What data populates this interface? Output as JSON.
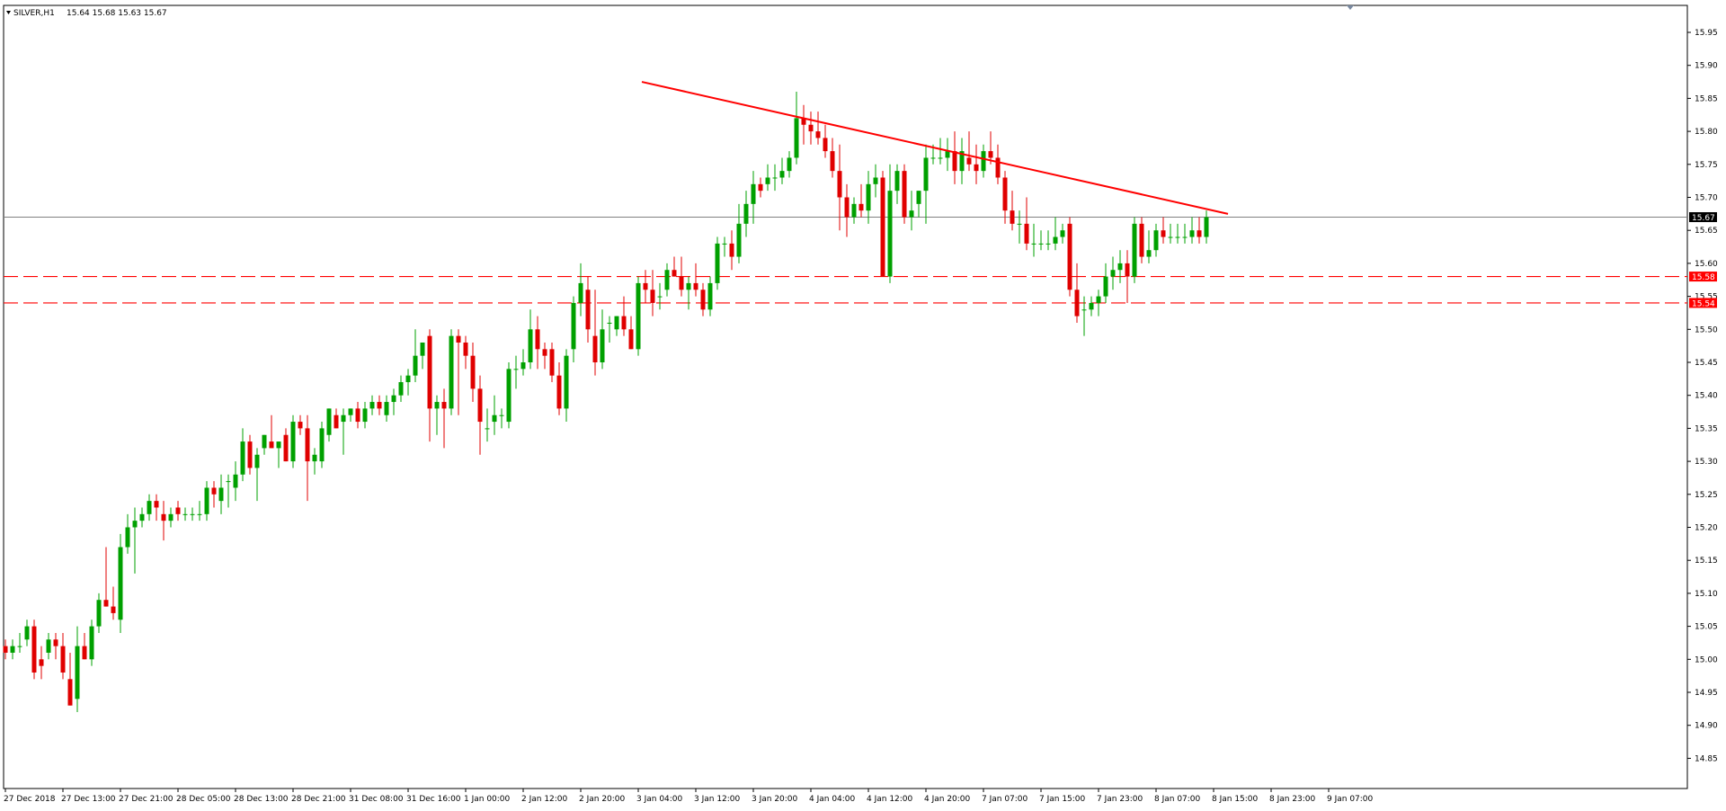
{
  "header": {
    "symbol": "SILVER,H1",
    "ohlc": "15.64 15.68 15.63 15.67"
  },
  "colors": {
    "bull": "#00a000",
    "bear": "#e00000",
    "bull_wick": "#00a000",
    "bear_wick": "#e00000",
    "trendline": "#ff0000",
    "level": "#ff0000",
    "current_line": "#808080",
    "axis": "#000000"
  },
  "chart_data": {
    "type": "candlestick",
    "ylim": [
      14.8,
      15.98
    ],
    "y_ticks": [
      "15.95",
      "15.90",
      "15.85",
      "15.80",
      "15.75",
      "15.70",
      "15.65",
      "15.60",
      "15.55",
      "15.50",
      "15.45",
      "15.40",
      "15.35",
      "15.30",
      "15.25",
      "15.20",
      "15.15",
      "15.10",
      "15.05",
      "15.00",
      "14.95",
      "14.90",
      "14.85"
    ],
    "x_ticks": [
      "27 Dec 2018",
      "27 Dec 13:00",
      "27 Dec 21:00",
      "28 Dec 05:00",
      "28 Dec 13:00",
      "28 Dec 21:00",
      "31 Dec 08:00",
      "31 Dec 16:00",
      "1 Jan 00:00",
      "2 Jan 12:00",
      "2 Jan 20:00",
      "3 Jan 04:00",
      "3 Jan 12:00",
      "3 Jan 20:00",
      "4 Jan 04:00",
      "4 Jan 12:00",
      "4 Jan 20:00",
      "7 Jan 07:00",
      "7 Jan 15:00",
      "7 Jan 23:00",
      "8 Jan 07:00",
      "8 Jan 15:00",
      "8 Jan 23:00",
      "9 Jan 07:00"
    ],
    "x_tick_spacing_bars": 8,
    "current_price": 15.67,
    "current_price_label": "15.67",
    "levels": [
      {
        "value": 15.58,
        "label": "15.58"
      },
      {
        "value": 15.54,
        "label": "15.54"
      }
    ],
    "trendline": {
      "start": [
        88.5,
        15.875
      ],
      "end": [
        170.0,
        15.675
      ]
    },
    "candles": [
      [
        15.02,
        15.03,
        15.0,
        15.01
      ],
      [
        15.01,
        15.03,
        15.0,
        15.02
      ],
      [
        15.02,
        15.04,
        15.01,
        15.02
      ],
      [
        15.03,
        15.06,
        15.02,
        15.05
      ],
      [
        15.05,
        15.06,
        14.97,
        14.98
      ],
      [
        15.0,
        15.02,
        14.97,
        14.99
      ],
      [
        15.01,
        15.04,
        15.0,
        15.03
      ],
      [
        15.03,
        15.04,
        15.0,
        15.02
      ],
      [
        15.02,
        15.04,
        14.97,
        14.98
      ],
      [
        14.97,
        15.01,
        14.93,
        14.93
      ],
      [
        14.94,
        15.05,
        14.92,
        15.02
      ],
      [
        15.02,
        15.04,
        15.0,
        15.0
      ],
      [
        15.0,
        15.06,
        14.99,
        15.05
      ],
      [
        15.05,
        15.1,
        15.04,
        15.09
      ],
      [
        15.09,
        15.17,
        15.08,
        15.08
      ],
      [
        15.08,
        15.11,
        15.06,
        15.07
      ],
      [
        15.06,
        15.19,
        15.04,
        15.17
      ],
      [
        15.17,
        15.22,
        15.16,
        15.2
      ],
      [
        15.2,
        15.23,
        15.13,
        15.21
      ],
      [
        15.21,
        15.23,
        15.2,
        15.22
      ],
      [
        15.22,
        15.25,
        15.21,
        15.24
      ],
      [
        15.24,
        15.25,
        15.21,
        15.23
      ],
      [
        15.22,
        15.24,
        15.18,
        15.21
      ],
      [
        15.21,
        15.23,
        15.2,
        15.22
      ],
      [
        15.23,
        15.24,
        15.21,
        15.22
      ],
      [
        15.22,
        15.23,
        15.21,
        15.22
      ],
      [
        15.22,
        15.23,
        15.21,
        15.22
      ],
      [
        15.22,
        15.24,
        15.21,
        15.22
      ],
      [
        15.22,
        15.27,
        15.21,
        15.26
      ],
      [
        15.26,
        15.27,
        15.23,
        15.25
      ],
      [
        15.24,
        15.28,
        15.22,
        15.26
      ],
      [
        15.27,
        15.28,
        15.23,
        15.27
      ],
      [
        15.26,
        15.3,
        15.24,
        15.28
      ],
      [
        15.28,
        15.35,
        15.27,
        15.33
      ],
      [
        15.33,
        15.34,
        15.28,
        15.29
      ],
      [
        15.29,
        15.32,
        15.24,
        15.31
      ],
      [
        15.32,
        15.34,
        15.31,
        15.34
      ],
      [
        15.33,
        15.37,
        15.32,
        15.32
      ],
      [
        15.32,
        15.33,
        15.29,
        15.33
      ],
      [
        15.34,
        15.35,
        15.3,
        15.3
      ],
      [
        15.3,
        15.37,
        15.29,
        15.36
      ],
      [
        15.36,
        15.37,
        15.34,
        15.35
      ],
      [
        15.35,
        15.37,
        15.24,
        15.3
      ],
      [
        15.3,
        15.32,
        15.28,
        15.31
      ],
      [
        15.3,
        15.36,
        15.29,
        15.35
      ],
      [
        15.34,
        15.38,
        15.33,
        15.38
      ],
      [
        15.37,
        15.38,
        15.35,
        15.35
      ],
      [
        15.36,
        15.38,
        15.31,
        15.37
      ],
      [
        15.37,
        15.38,
        15.36,
        15.38
      ],
      [
        15.38,
        15.39,
        15.35,
        15.36
      ],
      [
        15.36,
        15.39,
        15.35,
        15.38
      ],
      [
        15.38,
        15.4,
        15.37,
        15.39
      ],
      [
        15.39,
        15.4,
        15.37,
        15.38
      ],
      [
        15.37,
        15.4,
        15.36,
        15.39
      ],
      [
        15.39,
        15.41,
        15.37,
        15.4
      ],
      [
        15.4,
        15.43,
        15.39,
        15.42
      ],
      [
        15.42,
        15.44,
        15.4,
        15.43
      ],
      [
        15.43,
        15.5,
        15.42,
        15.46
      ],
      [
        15.46,
        15.48,
        15.44,
        15.48
      ],
      [
        15.49,
        15.5,
        15.33,
        15.38
      ],
      [
        15.38,
        15.4,
        15.34,
        15.39
      ],
      [
        15.39,
        15.41,
        15.32,
        15.38
      ],
      [
        15.38,
        15.5,
        15.37,
        15.49
      ],
      [
        15.49,
        15.5,
        15.37,
        15.48
      ],
      [
        15.48,
        15.49,
        15.44,
        15.46
      ],
      [
        15.46,
        15.48,
        15.39,
        15.41
      ],
      [
        15.41,
        15.43,
        15.31,
        15.36
      ],
      [
        15.35,
        15.38,
        15.33,
        15.35
      ],
      [
        15.36,
        15.4,
        15.34,
        15.37
      ],
      [
        15.37,
        15.38,
        15.35,
        15.37
      ],
      [
        15.36,
        15.45,
        15.35,
        15.44
      ],
      [
        15.44,
        15.46,
        15.41,
        15.44
      ],
      [
        15.44,
        15.47,
        15.43,
        15.45
      ],
      [
        15.45,
        15.53,
        15.44,
        15.5
      ],
      [
        15.5,
        15.52,
        15.44,
        15.47
      ],
      [
        15.47,
        15.48,
        15.44,
        15.46
      ],
      [
        15.47,
        15.48,
        15.42,
        15.43
      ],
      [
        15.43,
        15.45,
        15.37,
        15.38
      ],
      [
        15.38,
        15.47,
        15.36,
        15.46
      ],
      [
        15.47,
        15.55,
        15.45,
        15.54
      ],
      [
        15.54,
        15.6,
        15.52,
        15.57
      ],
      [
        15.56,
        15.58,
        15.48,
        15.5
      ],
      [
        15.49,
        15.56,
        15.43,
        15.45
      ],
      [
        15.45,
        15.53,
        15.44,
        15.5
      ],
      [
        15.51,
        15.52,
        15.48,
        15.51
      ],
      [
        15.5,
        15.52,
        15.49,
        15.52
      ],
      [
        15.52,
        15.55,
        15.49,
        15.5
      ],
      [
        15.5,
        15.52,
        15.47,
        15.47
      ],
      [
        15.47,
        15.58,
        15.46,
        15.57
      ],
      [
        15.57,
        15.59,
        15.54,
        15.56
      ],
      [
        15.56,
        15.59,
        15.52,
        15.54
      ],
      [
        15.55,
        15.57,
        15.53,
        15.55
      ],
      [
        15.56,
        15.6,
        15.55,
        15.59
      ],
      [
        15.59,
        15.61,
        15.58,
        15.58
      ],
      [
        15.58,
        15.61,
        15.55,
        15.56
      ],
      [
        15.56,
        15.58,
        15.53,
        15.57
      ],
      [
        15.57,
        15.6,
        15.55,
        15.56
      ],
      [
        15.56,
        15.57,
        15.52,
        15.53
      ],
      [
        15.53,
        15.58,
        15.52,
        15.57
      ],
      [
        15.57,
        15.64,
        15.56,
        15.63
      ],
      [
        15.63,
        15.64,
        15.61,
        15.63
      ],
      [
        15.63,
        15.65,
        15.59,
        15.61
      ],
      [
        15.61,
        15.69,
        15.6,
        15.66
      ],
      [
        15.66,
        15.71,
        15.64,
        15.69
      ],
      [
        15.69,
        15.74,
        15.66,
        15.72
      ],
      [
        15.72,
        15.73,
        15.7,
        15.71
      ],
      [
        15.72,
        15.75,
        15.71,
        15.73
      ],
      [
        15.73,
        15.75,
        15.71,
        15.73
      ],
      [
        15.73,
        15.76,
        15.72,
        15.74
      ],
      [
        15.74,
        15.77,
        15.73,
        15.76
      ],
      [
        15.76,
        15.86,
        15.75,
        15.82
      ],
      [
        15.82,
        15.84,
        15.78,
        15.81
      ],
      [
        15.81,
        15.83,
        15.78,
        15.8
      ],
      [
        15.8,
        15.83,
        15.78,
        15.79
      ],
      [
        15.79,
        15.81,
        15.76,
        15.77
      ],
      [
        15.77,
        15.79,
        15.73,
        15.74
      ],
      [
        15.74,
        15.78,
        15.65,
        15.7
      ],
      [
        15.7,
        15.72,
        15.64,
        15.67
      ],
      [
        15.67,
        15.7,
        15.66,
        15.69
      ],
      [
        15.69,
        15.72,
        15.67,
        15.68
      ],
      [
        15.68,
        15.74,
        15.66,
        15.72
      ],
      [
        15.72,
        15.75,
        15.7,
        15.73
      ],
      [
        15.73,
        15.74,
        15.58,
        15.58
      ],
      [
        15.58,
        15.75,
        15.57,
        15.71
      ],
      [
        15.71,
        15.75,
        15.69,
        15.74
      ],
      [
        15.74,
        15.75,
        15.66,
        15.67
      ],
      [
        15.67,
        15.71,
        15.65,
        15.68
      ],
      [
        15.69,
        15.71,
        15.67,
        15.71
      ],
      [
        15.71,
        15.78,
        15.66,
        15.76
      ],
      [
        15.76,
        15.78,
        15.75,
        15.76
      ],
      [
        15.76,
        15.79,
        15.75,
        15.76
      ],
      [
        15.76,
        15.79,
        15.74,
        15.77
      ],
      [
        15.77,
        15.8,
        15.72,
        15.74
      ],
      [
        15.74,
        15.79,
        15.72,
        15.77
      ],
      [
        15.76,
        15.8,
        15.74,
        15.75
      ],
      [
        15.75,
        15.78,
        15.72,
        15.74
      ],
      [
        15.74,
        15.78,
        15.73,
        15.77
      ],
      [
        15.77,
        15.8,
        15.75,
        15.76
      ],
      [
        15.76,
        15.78,
        15.72,
        15.73
      ],
      [
        15.73,
        15.74,
        15.66,
        15.68
      ],
      [
        15.68,
        15.71,
        15.65,
        15.66
      ],
      [
        15.66,
        15.68,
        15.63,
        15.66
      ],
      [
        15.66,
        15.7,
        15.62,
        15.63
      ],
      [
        15.63,
        15.66,
        15.61,
        15.63
      ],
      [
        15.63,
        15.65,
        15.62,
        15.63
      ],
      [
        15.63,
        15.65,
        15.62,
        15.63
      ],
      [
        15.63,
        15.67,
        15.62,
        15.64
      ],
      [
        15.64,
        15.66,
        15.63,
        15.65
      ],
      [
        15.66,
        15.67,
        15.55,
        15.56
      ],
      [
        15.56,
        15.6,
        15.51,
        15.52
      ],
      [
        15.53,
        15.55,
        15.49,
        15.53
      ],
      [
        15.53,
        15.55,
        15.52,
        15.54
      ],
      [
        15.54,
        15.56,
        15.52,
        15.55
      ],
      [
        15.55,
        15.6,
        15.54,
        15.58
      ],
      [
        15.58,
        15.61,
        15.56,
        15.59
      ],
      [
        15.59,
        15.62,
        15.57,
        15.6
      ],
      [
        15.6,
        15.62,
        15.54,
        15.58
      ],
      [
        15.58,
        15.67,
        15.57,
        15.66
      ],
      [
        15.66,
        15.67,
        15.6,
        15.61
      ],
      [
        15.61,
        15.65,
        15.6,
        15.62
      ],
      [
        15.62,
        15.66,
        15.61,
        15.65
      ],
      [
        15.65,
        15.67,
        15.63,
        15.64
      ],
      [
        15.64,
        15.66,
        15.63,
        15.64
      ],
      [
        15.64,
        15.66,
        15.63,
        15.64
      ],
      [
        15.64,
        15.66,
        15.63,
        15.64
      ],
      [
        15.64,
        15.67,
        15.63,
        15.65
      ],
      [
        15.65,
        15.67,
        15.63,
        15.64
      ],
      [
        15.64,
        15.68,
        15.63,
        15.67
      ]
    ]
  }
}
